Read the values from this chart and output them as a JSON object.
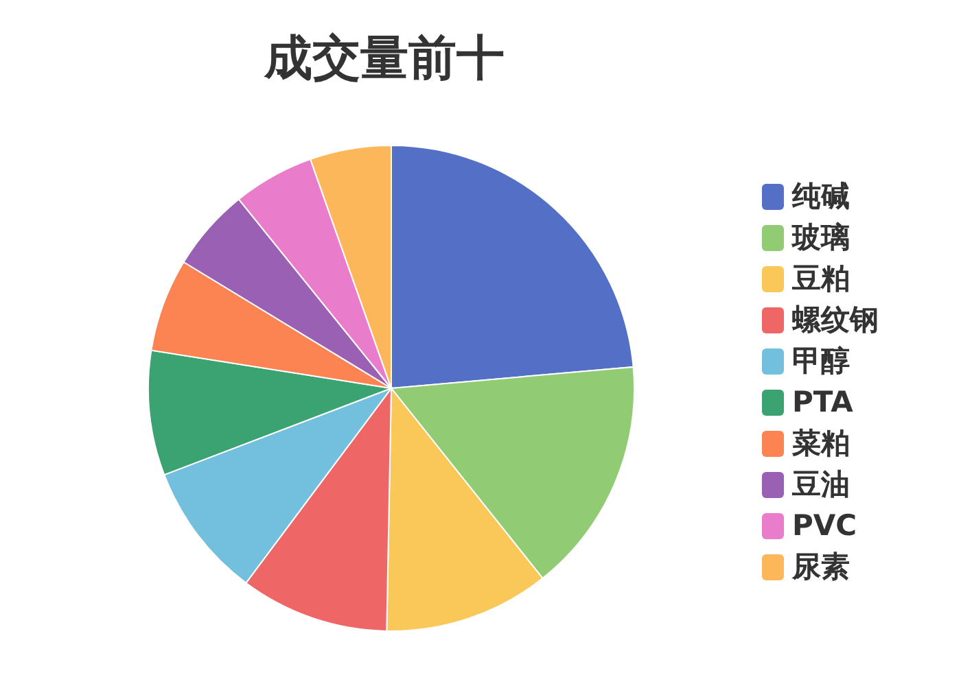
{
  "chart_data": {
    "type": "pie",
    "title": "成交量前十",
    "categories": [
      "纯碱",
      "玻璃",
      "豆粕",
      "螺纹钢",
      "甲醇",
      "PTA",
      "菜粕",
      "豆油",
      "PVC",
      "尿素"
    ],
    "values": [
      23.6,
      15.7,
      11.0,
      9.9,
      9.0,
      8.3,
      6.2,
      5.5,
      5.4,
      5.4
    ],
    "colors": [
      "#5470c6",
      "#91cc75",
      "#fac858",
      "#ee6666",
      "#73c0de",
      "#3ba272",
      "#fc8452",
      "#9a60b4",
      "#ea7ccc",
      "#fcb75b"
    ],
    "legend": "right"
  }
}
